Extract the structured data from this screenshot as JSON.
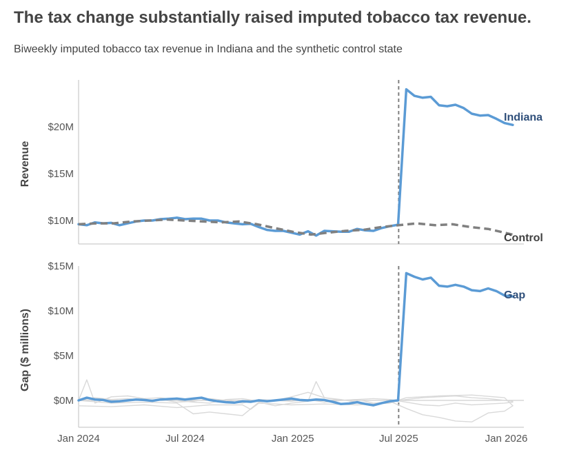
{
  "title": "The tax change substantially raised imputed tobacco tax revenue.",
  "subtitle": "Biweekly imputed tobacco tax revenue in Indiana and the synthetic control state",
  "colors": {
    "indiana": "#5b9bd5",
    "control": "#808080",
    "placebo": "#d9d9d9",
    "label_indiana": "#2f4f7a",
    "label_control": "#404040"
  },
  "chart_data": [
    {
      "type": "line",
      "ylabel": "Revenue",
      "y_ticks": [
        10,
        15,
        20
      ],
      "y_tick_labels": [
        "$10M",
        "$15M",
        "$20M"
      ],
      "ylim": [
        7.5,
        25
      ],
      "x_range": [
        "2024-01-01",
        "2026-01-31"
      ],
      "treatment_date": "2025-07-01",
      "series": [
        {
          "name": "Indiana",
          "style": "solid",
          "x": [
            "2024-01-01",
            "2024-01-15",
            "2024-01-29",
            "2024-02-12",
            "2024-02-26",
            "2024-03-11",
            "2024-03-25",
            "2024-04-08",
            "2024-04-22",
            "2024-05-06",
            "2024-05-20",
            "2024-06-03",
            "2024-06-17",
            "2024-07-01",
            "2024-07-15",
            "2024-07-29",
            "2024-08-12",
            "2024-08-26",
            "2024-09-09",
            "2024-09-23",
            "2024-10-07",
            "2024-10-21",
            "2024-11-04",
            "2024-11-18",
            "2024-12-02",
            "2024-12-16",
            "2024-12-30",
            "2025-01-13",
            "2025-01-27",
            "2025-02-10",
            "2025-02-24",
            "2025-03-10",
            "2025-03-24",
            "2025-04-07",
            "2025-04-21",
            "2025-05-05",
            "2025-05-19",
            "2025-06-02",
            "2025-06-16",
            "2025-06-30",
            "2025-07-14",
            "2025-07-28",
            "2025-08-11",
            "2025-08-25",
            "2025-09-08",
            "2025-09-22",
            "2025-10-06",
            "2025-10-20",
            "2025-11-03",
            "2025-11-17",
            "2025-12-01",
            "2025-12-15",
            "2025-12-29",
            "2026-01-12"
          ],
          "values": [
            9.6,
            9.5,
            9.8,
            9.7,
            9.75,
            9.5,
            9.7,
            9.9,
            10.0,
            10.0,
            10.15,
            10.2,
            10.3,
            10.15,
            10.2,
            10.2,
            10.0,
            10.0,
            9.8,
            9.7,
            9.6,
            9.65,
            9.3,
            9.0,
            8.9,
            8.9,
            8.7,
            8.5,
            8.85,
            8.4,
            8.9,
            8.85,
            8.8,
            8.8,
            9.1,
            8.95,
            8.9,
            9.2,
            9.4,
            9.55,
            24.0,
            23.3,
            23.1,
            23.2,
            22.3,
            22.2,
            22.35,
            22.0,
            21.4,
            21.2,
            21.25,
            20.85,
            20.4,
            20.2
          ]
        },
        {
          "name": "Control",
          "style": "dashed",
          "x": [
            "2024-01-01",
            "2024-02-01",
            "2024-03-01",
            "2024-04-01",
            "2024-05-01",
            "2024-06-01",
            "2024-07-01",
            "2024-08-01",
            "2024-09-01",
            "2024-10-01",
            "2024-11-01",
            "2024-12-01",
            "2025-01-01",
            "2025-02-01",
            "2025-03-01",
            "2025-04-01",
            "2025-05-01",
            "2025-06-01",
            "2025-07-01",
            "2025-08-01",
            "2025-09-01",
            "2025-10-01",
            "2025-11-01",
            "2025-12-01",
            "2026-01-12"
          ],
          "values": [
            9.6,
            9.7,
            9.7,
            9.9,
            10.0,
            10.1,
            10.0,
            9.9,
            9.8,
            9.9,
            9.6,
            9.2,
            8.8,
            8.5,
            8.7,
            8.9,
            9.0,
            9.3,
            9.5,
            9.7,
            9.5,
            9.6,
            9.3,
            9.1,
            8.5
          ]
        }
      ]
    },
    {
      "type": "line",
      "ylabel": "Gap ($ millions)",
      "y_ticks": [
        0,
        5,
        10,
        15
      ],
      "y_tick_labels": [
        "$0M",
        "$5M",
        "$10M",
        "$15M"
      ],
      "ylim": [
        -3,
        15
      ],
      "x_range": [
        "2024-01-01",
        "2026-01-31"
      ],
      "x_ticks": [
        "2024-01-01",
        "2024-07-01",
        "2025-01-01",
        "2025-07-01",
        "2026-01-01"
      ],
      "x_tick_labels": [
        "Jan 2024",
        "Jul 2024",
        "Jan 2025",
        "Jul 2025",
        "Jan 2026"
      ],
      "treatment_date": "2025-07-01",
      "series": [
        {
          "name": "Gap",
          "style": "solid",
          "x": [
            "2024-01-01",
            "2024-01-15",
            "2024-01-29",
            "2024-02-12",
            "2024-02-26",
            "2024-03-11",
            "2024-03-25",
            "2024-04-08",
            "2024-04-22",
            "2024-05-06",
            "2024-05-20",
            "2024-06-03",
            "2024-06-17",
            "2024-07-01",
            "2024-07-15",
            "2024-07-29",
            "2024-08-12",
            "2024-08-26",
            "2024-09-09",
            "2024-09-23",
            "2024-10-07",
            "2024-10-21",
            "2024-11-04",
            "2024-11-18",
            "2024-12-02",
            "2024-12-16",
            "2024-12-30",
            "2025-01-13",
            "2025-01-27",
            "2025-02-10",
            "2025-02-24",
            "2025-03-10",
            "2025-03-24",
            "2025-04-07",
            "2025-04-21",
            "2025-05-05",
            "2025-05-19",
            "2025-06-02",
            "2025-06-16",
            "2025-06-30",
            "2025-07-14",
            "2025-07-28",
            "2025-08-11",
            "2025-08-25",
            "2025-09-08",
            "2025-09-22",
            "2025-10-06",
            "2025-10-20",
            "2025-11-03",
            "2025-11-17",
            "2025-12-01",
            "2025-12-15",
            "2025-12-29",
            "2026-01-12"
          ],
          "values": [
            0.0,
            0.3,
            0.1,
            0.05,
            -0.15,
            -0.1,
            0.0,
            0.1,
            0.05,
            -0.05,
            0.1,
            0.15,
            0.2,
            0.1,
            0.2,
            0.3,
            0.05,
            -0.1,
            -0.2,
            -0.25,
            -0.1,
            -0.15,
            0.0,
            -0.1,
            0.0,
            0.1,
            0.2,
            0.05,
            0.0,
            0.1,
            0.05,
            -0.15,
            -0.4,
            -0.35,
            -0.2,
            -0.4,
            -0.55,
            -0.3,
            -0.1,
            0.0,
            14.2,
            13.8,
            13.5,
            13.7,
            12.8,
            12.7,
            12.9,
            12.7,
            12.3,
            12.2,
            12.5,
            12.2,
            11.7,
            11.6
          ]
        },
        {
          "name": "",
          "style": "placebo",
          "x": [
            "2024-01-01",
            "2024-01-29",
            "2024-02-26",
            "2024-03-25",
            "2024-04-22",
            "2024-05-20",
            "2024-06-17",
            "2024-07-15",
            "2024-08-12",
            "2024-09-09",
            "2024-10-07",
            "2024-11-04",
            "2024-12-02",
            "2024-12-30",
            "2025-01-27",
            "2025-02-24",
            "2025-03-24",
            "2025-04-21",
            "2025-05-19",
            "2025-06-16",
            "2025-07-14",
            "2025-08-11",
            "2025-09-08",
            "2025-10-06",
            "2025-11-03",
            "2025-12-01",
            "2025-12-29",
            "2026-01-12"
          ],
          "values": [
            0.0,
            0.3,
            0.1,
            0.2,
            0.0,
            0.1,
            -0.2,
            -0.1,
            0.2,
            0.0,
            -0.3,
            0.1,
            0.0,
            0.4,
            0.9,
            0.3,
            0.0,
            0.1,
            0.2,
            0.1,
            -0.2,
            -0.5,
            -0.6,
            -0.3,
            -0.5,
            -0.4,
            -0.3,
            -0.2
          ]
        },
        {
          "name": "",
          "style": "placebo",
          "x": [
            "2024-01-01",
            "2024-01-15",
            "2024-01-29",
            "2024-02-26",
            "2024-03-25",
            "2024-04-22",
            "2024-05-20",
            "2024-06-17",
            "2024-07-15",
            "2024-08-12",
            "2024-09-09",
            "2024-10-07",
            "2024-11-04",
            "2024-12-02",
            "2024-12-30",
            "2025-01-27",
            "2025-02-24",
            "2025-03-24",
            "2025-04-21",
            "2025-05-19",
            "2025-06-16",
            "2025-07-14",
            "2025-08-11",
            "2025-09-08",
            "2025-10-06",
            "2025-11-03",
            "2025-12-01",
            "2025-12-29",
            "2026-01-12"
          ],
          "values": [
            0.0,
            2.3,
            -0.3,
            0.4,
            0.5,
            0.2,
            0.3,
            0.0,
            -0.2,
            -0.3,
            0.1,
            0.2,
            -0.1,
            0.0,
            -0.1,
            0.1,
            -0.2,
            0.0,
            0.1,
            -0.3,
            -0.2,
            0.1,
            0.3,
            0.4,
            0.5,
            0.3,
            0.2,
            0.0,
            -0.1
          ]
        },
        {
          "name": "",
          "style": "placebo",
          "x": [
            "2024-01-01",
            "2024-02-26",
            "2024-04-22",
            "2024-06-17",
            "2024-07-15",
            "2024-08-12",
            "2024-09-09",
            "2024-10-07",
            "2024-11-04",
            "2024-12-02",
            "2024-12-30",
            "2025-01-27",
            "2025-02-10",
            "2025-02-24",
            "2025-03-24",
            "2025-04-21",
            "2025-05-19",
            "2025-06-16",
            "2025-07-14",
            "2025-08-11",
            "2025-09-08",
            "2025-10-06",
            "2025-11-03",
            "2025-12-01",
            "2025-12-29",
            "2026-01-12"
          ],
          "values": [
            0.0,
            -0.3,
            -0.2,
            -0.3,
            -1.5,
            -1.3,
            -1.5,
            -1.7,
            -0.2,
            -0.6,
            -0.3,
            -0.1,
            2.1,
            0.3,
            0.1,
            -0.2,
            -0.4,
            -0.1,
            -0.9,
            -1.6,
            -1.9,
            -2.3,
            -2.4,
            -1.4,
            -1.2,
            -0.6
          ]
        },
        {
          "name": "",
          "style": "placebo",
          "x": [
            "2024-01-01",
            "2024-02-26",
            "2024-04-22",
            "2024-06-17",
            "2024-08-12",
            "2024-10-07",
            "2024-10-21",
            "2024-11-04",
            "2024-12-02",
            "2024-12-30",
            "2025-02-24",
            "2025-04-21",
            "2025-06-16",
            "2025-07-14",
            "2025-09-08",
            "2025-11-03",
            "2025-12-29",
            "2026-01-12"
          ],
          "values": [
            -0.6,
            -0.7,
            -0.5,
            -0.8,
            -0.5,
            -0.5,
            -1.0,
            -0.3,
            -0.4,
            -0.5,
            -0.4,
            -0.5,
            -0.3,
            0.3,
            0.5,
            0.6,
            0.3,
            -0.6
          ]
        }
      ]
    }
  ]
}
